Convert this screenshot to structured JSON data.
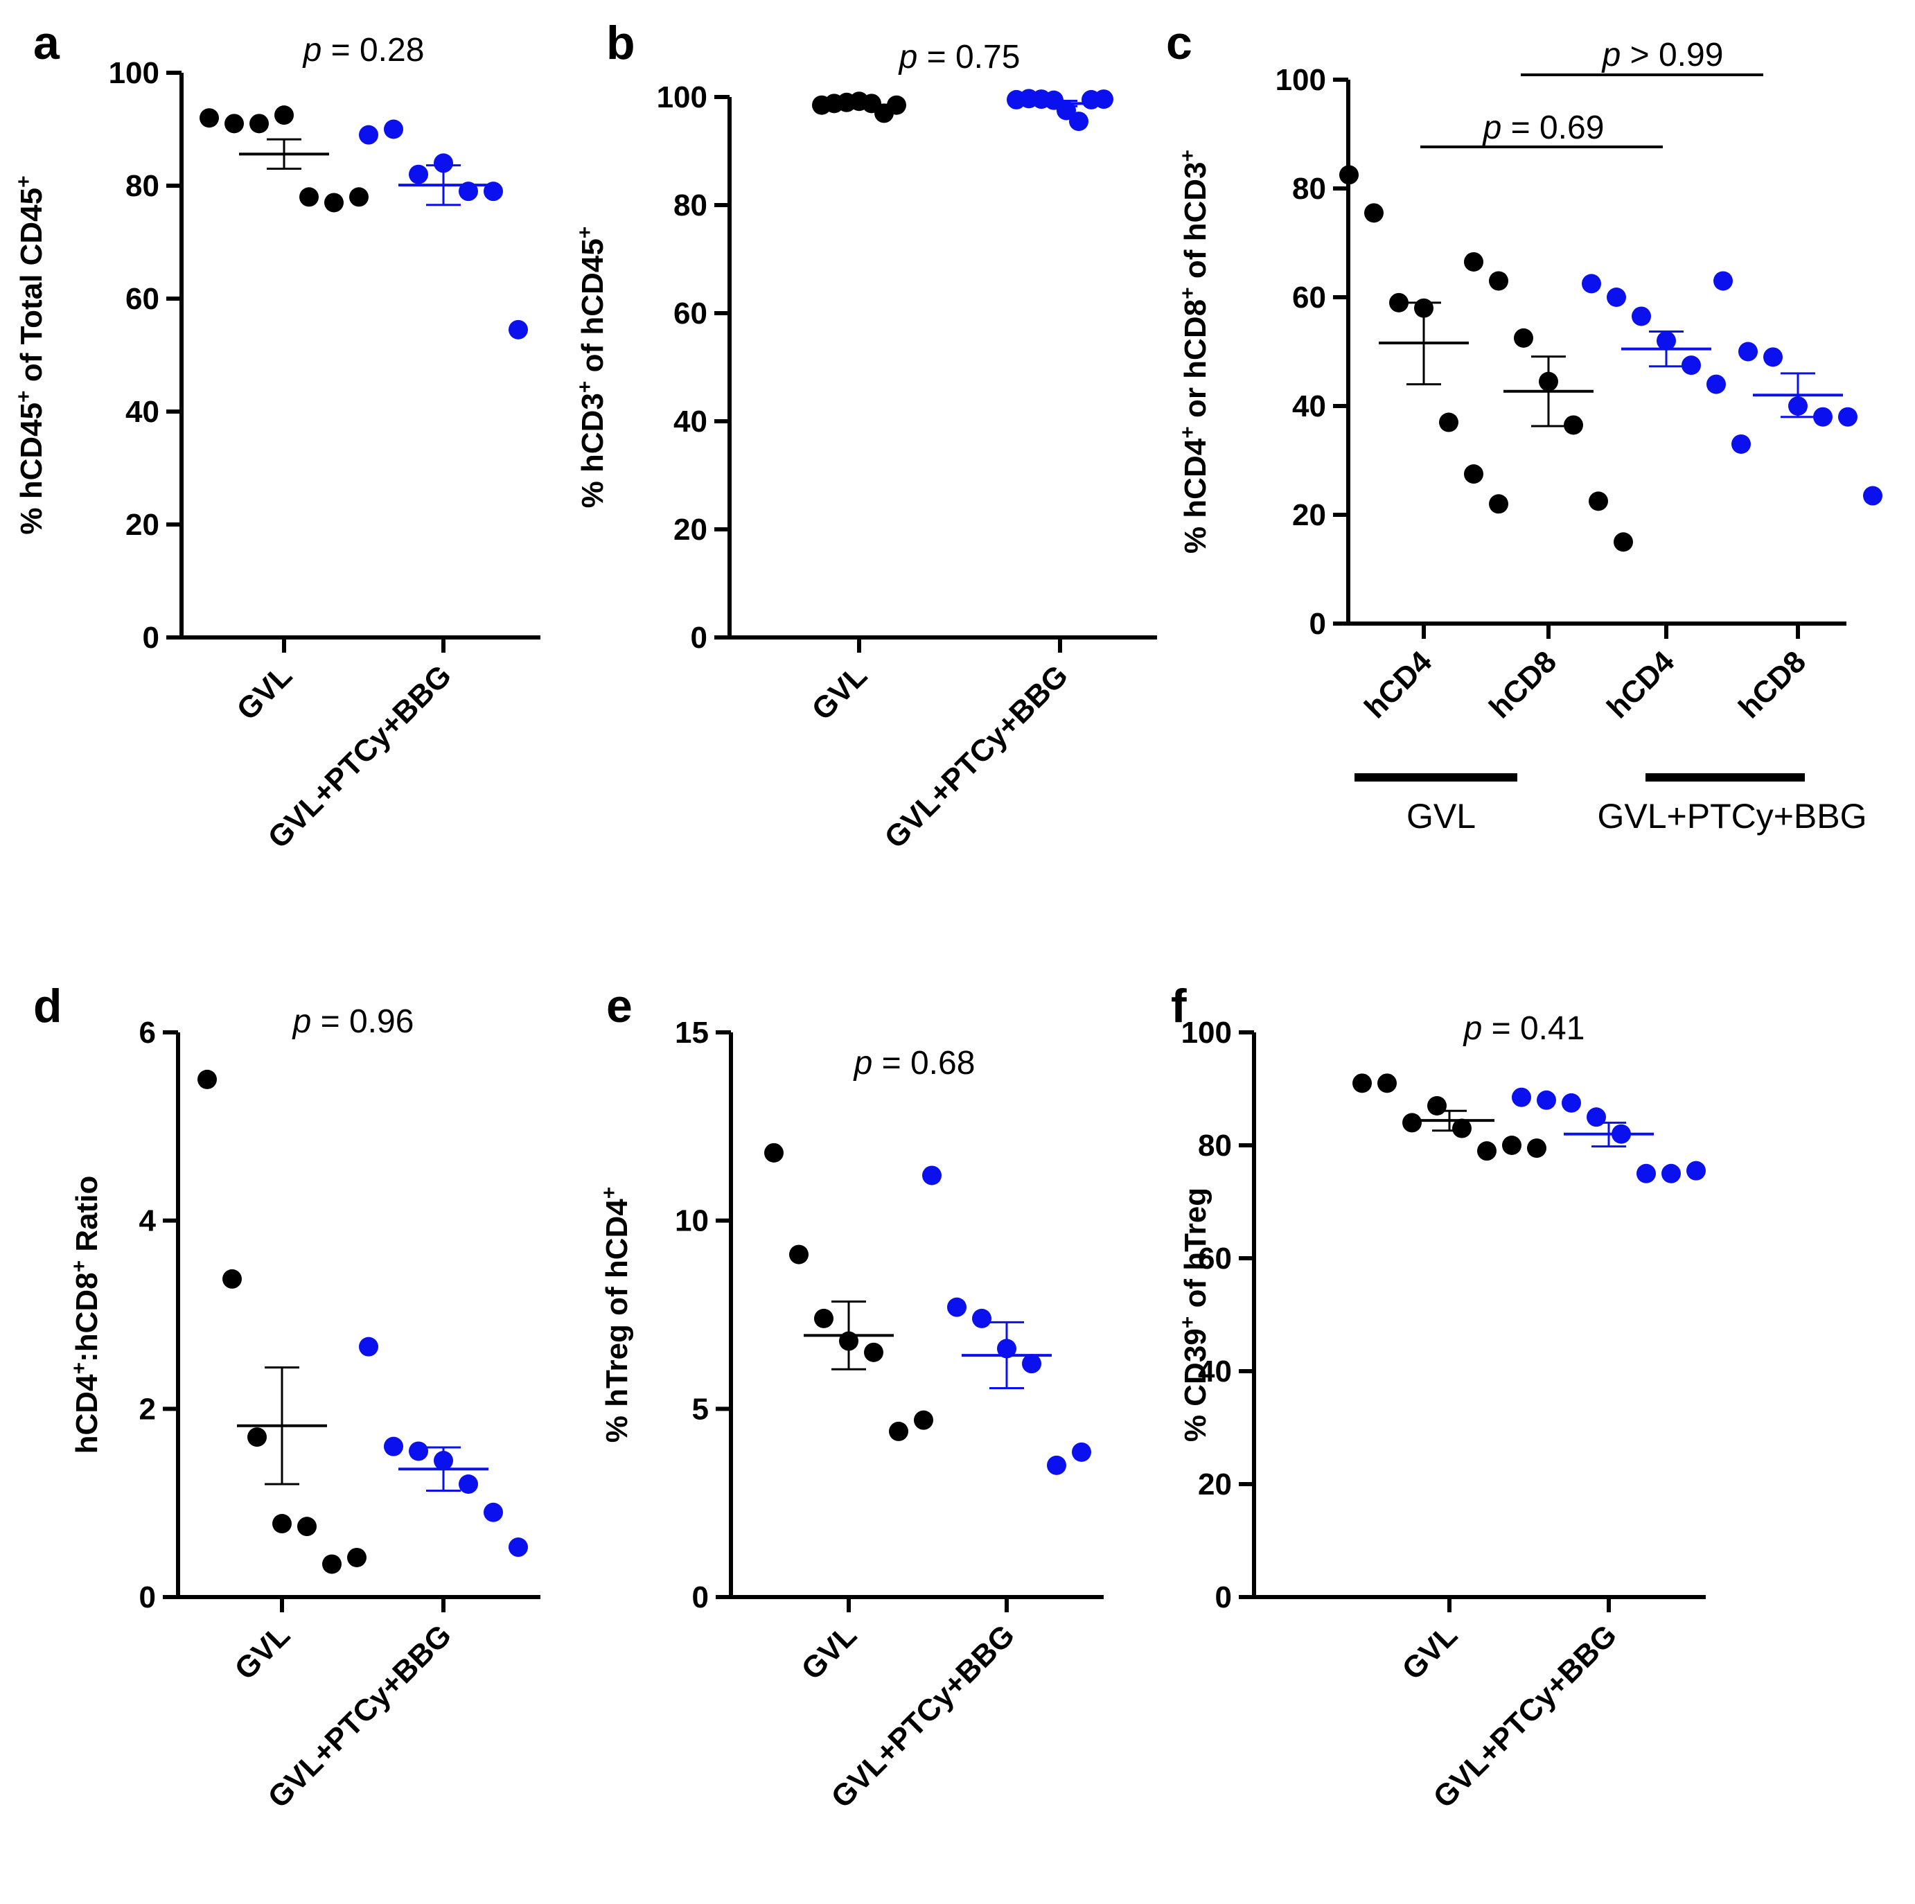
{
  "colors": {
    "gvl": "#000000",
    "treated": "#0a10ee"
  },
  "p_italic": "p",
  "group_labels": [
    "GVL",
    "GVL+PTCy+BBG"
  ],
  "panels": [
    {
      "letter": "a",
      "ylabel_parts": [
        "% hCD45",
        "+",
        " of Total CD45",
        "+"
      ],
      "yticks": [
        "0",
        "20",
        "40",
        "60",
        "80",
        "100"
      ],
      "categories": [
        "GVL",
        "GVL+PTCy+BBG"
      ],
      "pvalue": " = 0.28"
    },
    {
      "letter": "b",
      "ylabel_parts": [
        "% hCD3",
        "+",
        " of hCD45",
        "+"
      ],
      "yticks": [
        "0",
        "20",
        "40",
        "60",
        "80",
        "100"
      ],
      "categories": [
        "GVL",
        "GVL+PTCy+BBG"
      ],
      "pvalue": " = 0.75"
    },
    {
      "letter": "c",
      "ylabel_parts": [
        "% hCD4",
        "+",
        " or hCD8",
        "+",
        " of hCD3",
        "+"
      ],
      "yticks": [
        "0",
        "20",
        "40",
        "60",
        "80",
        "100"
      ],
      "categories": [
        "hCD4",
        "hCD8",
        "hCD4",
        "hCD8"
      ],
      "pvalue1": " = 0.69",
      "pvalue2": " > 0.99",
      "group1": "GVL",
      "group2": "GVL+PTCy+BBG"
    },
    {
      "letter": "d",
      "ylabel_parts": [
        "hCD4",
        "+",
        ":hCD8",
        "+",
        " Ratio"
      ],
      "yticks": [
        "0",
        "2",
        "4",
        "6"
      ],
      "categories": [
        "GVL",
        "GVL+PTCy+BBG"
      ],
      "pvalue": " = 0.96"
    },
    {
      "letter": "e",
      "ylabel_parts": [
        "% hTreg of hCD4",
        "+"
      ],
      "yticks": [
        "0",
        "5",
        "10",
        "15"
      ],
      "categories": [
        "GVL",
        "GVL+PTCy+BBG"
      ],
      "pvalue": " = 0.68"
    },
    {
      "letter": "f",
      "ylabel_parts": [
        "% CD39",
        "+",
        " of hTreg"
      ],
      "yticks": [
        "0",
        "20",
        "40",
        "60",
        "80",
        "100"
      ],
      "categories": [
        "GVL",
        "GVL+PTCy+BBG"
      ],
      "pvalue": " = 0.41"
    }
  ],
  "chart_data": [
    {
      "panel": "a",
      "type": "scatter",
      "ylim": [
        0,
        100
      ],
      "series": [
        {
          "name": "GVL",
          "values": [
            92,
            91,
            91,
            92.5,
            78,
            77,
            78
          ],
          "mean": 85.6,
          "sem_low": 83.0,
          "sem_high": 88.2
        },
        {
          "name": "GVL+PTCy+BBG",
          "values": [
            89,
            90,
            82,
            84,
            79,
            79,
            54.5
          ],
          "mean": 80.1,
          "sem_low": 76.6,
          "sem_high": 83.6
        }
      ]
    },
    {
      "panel": "b",
      "type": "scatter",
      "ylim": [
        0,
        100
      ],
      "series": [
        {
          "name": "GVL",
          "values": [
            98.5,
            98.8,
            99.0,
            99.2,
            98.8,
            97.0,
            98.5
          ],
          "mean": 98.5,
          "sem_low": 98.2,
          "sem_high": 98.8
        },
        {
          "name": "GVL+PTCy+BBG",
          "values": [
            99.5,
            99.7,
            99.6,
            99.4,
            97.5,
            95.5,
            99.5,
            99.6
          ],
          "mean": 98.8,
          "sem_low": 98.3,
          "sem_high": 99.3
        }
      ]
    },
    {
      "panel": "c",
      "type": "scatter",
      "ylim": [
        0,
        100
      ],
      "series": [
        {
          "name": "GVL hCD4",
          "values": [
            82.5,
            75.5,
            59,
            58,
            37,
            27.5,
            22
          ],
          "mean": 51.6,
          "sem_low": 44,
          "sem_high": 59
        },
        {
          "name": "GVL hCD8",
          "values": [
            66.5,
            63,
            52.5,
            44.5,
            36.5,
            22.5,
            15
          ],
          "mean": 42.7,
          "sem_low": 36.3,
          "sem_high": 49.1
        },
        {
          "name": "GVL+PTCy+BBG hCD4",
          "values": [
            62.5,
            60,
            56.5,
            52,
            47.5,
            44,
            33
          ],
          "mean": 50.5,
          "sem_low": 47.3,
          "sem_high": 53.7
        },
        {
          "name": "GVL+PTCy+BBG hCD8",
          "values": [
            63,
            50,
            49,
            40,
            38,
            38,
            23.5
          ],
          "mean": 42.0,
          "sem_low": 38.0,
          "sem_high": 46.0
        }
      ]
    },
    {
      "panel": "d",
      "type": "scatter",
      "ylim": [
        0,
        6
      ],
      "series": [
        {
          "name": "GVL",
          "values": [
            5.5,
            3.38,
            1.7,
            0.78,
            0.75,
            0.35,
            0.42
          ],
          "mean": 1.82,
          "sem_low": 1.2,
          "sem_high": 2.44
        },
        {
          "name": "GVL+PTCy+BBG",
          "values": [
            2.66,
            1.6,
            1.55,
            1.45,
            1.2,
            0.9,
            0.53
          ],
          "mean": 1.36,
          "sem_low": 1.13,
          "sem_high": 1.59
        }
      ]
    },
    {
      "panel": "e",
      "type": "scatter",
      "ylim": [
        0,
        15
      ],
      "series": [
        {
          "name": "GVL",
          "values": [
            11.8,
            9.1,
            7.4,
            6.8,
            6.5,
            4.4,
            4.7
          ],
          "mean": 6.95,
          "sem_low": 6.05,
          "sem_high": 7.85
        },
        {
          "name": "GVL+PTCy+BBG",
          "values": [
            11.2,
            7.7,
            7.4,
            6.6,
            6.2,
            3.5,
            3.85
          ],
          "mean": 6.42,
          "sem_low": 5.55,
          "sem_high": 7.3
        }
      ]
    },
    {
      "panel": "f",
      "type": "scatter",
      "ylim": [
        0,
        100
      ],
      "series": [
        {
          "name": "GVL",
          "values": [
            91,
            91,
            84,
            87,
            83,
            79,
            80,
            79.5
          ],
          "mean": 84.4,
          "sem_low": 82.6,
          "sem_high": 86.1
        },
        {
          "name": "GVL+PTCy+BBG",
          "values": [
            88.5,
            88,
            87.5,
            85,
            82,
            75,
            75,
            75.5
          ],
          "mean": 82.0,
          "sem_low": 79.8,
          "sem_high": 84.0
        }
      ]
    }
  ]
}
